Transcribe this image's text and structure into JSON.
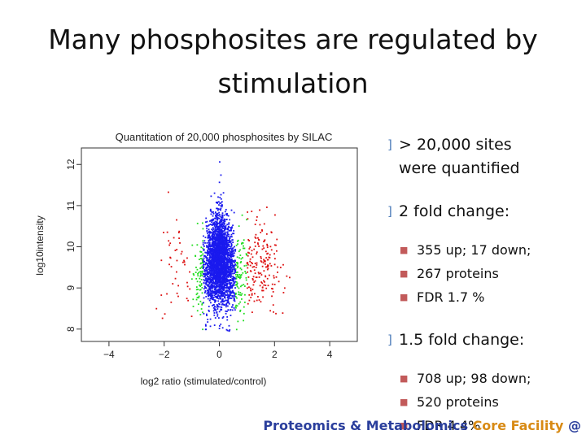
{
  "slide": {
    "title_lines": [
      "Many phosphosites are regulated by",
      "stimulation"
    ],
    "bullets": [
      {
        "text": "> 20,000 sites",
        "cont": "were quantified",
        "subs": []
      },
      {
        "text": "2 fold change:",
        "subs": [
          "355 up; 17 down;",
          "267 proteins",
          "FDR 1.7 %"
        ]
      },
      {
        "text": "1.5 fold change:",
        "subs": [
          "708 up;  98 down;",
          "520 proteins",
          "FDR 4.4%"
        ]
      }
    ],
    "footer": {
      "part1": "Proteomics & Metabolomics ",
      "part2": "Core Facility",
      "part3": " @"
    },
    "colors": {
      "text": "#111111",
      "footer_blue": "#2a3e9c",
      "footer_orange": "#d88a14",
      "bullet_marker": "#4a7ab8"
    }
  },
  "chart_data": {
    "type": "scatter",
    "title": "Quantitation of 20,000 phosphosites by SILAC",
    "xlabel": "log2 ratio (stimulated/control)",
    "ylabel": "log10intensity",
    "xlim": [
      -5,
      5
    ],
    "ylim": [
      7.7,
      12.4
    ],
    "xticks": [
      -4,
      -2,
      0,
      2,
      4
    ],
    "xtick_labels": [
      "−4",
      "−2",
      "0",
      "2",
      "4"
    ],
    "yticks": [
      8,
      9,
      10,
      11,
      12
    ],
    "ytick_labels": [
      "8",
      "9",
      "10",
      "11",
      "12"
    ],
    "series_colors": {
      "unchanged": "#1a1aee",
      "fold_1_5": "#22dd22",
      "fold_2": "#dd1111"
    },
    "fold_thresholds_log2": [
      0.585,
      1.0
    ],
    "grid": false,
    "legend": false
  }
}
